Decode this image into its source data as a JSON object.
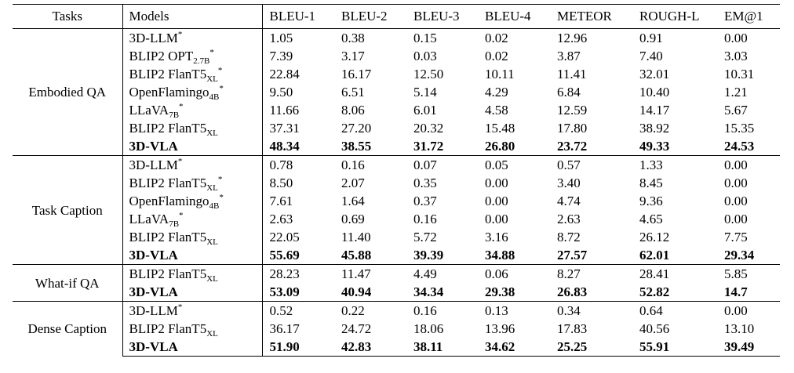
{
  "columns": [
    "Tasks",
    "Models",
    "BLEU-1",
    "BLEU-2",
    "BLEU-3",
    "BLEU-4",
    "METEOR",
    "ROUGH-L",
    "EM@1"
  ],
  "groups": [
    {
      "task": "Embodied QA",
      "rows": [
        {
          "model": "3D-LLM",
          "sub": "",
          "star": "*",
          "bold": false,
          "values": [
            "1.05",
            "0.38",
            "0.15",
            "0.02",
            "12.96",
            "0.91",
            "0.00"
          ]
        },
        {
          "model": "BLIP2 OPT",
          "sub": "2.7B",
          "star": "*",
          "bold": false,
          "values": [
            "7.39",
            "3.17",
            "0.03",
            "0.02",
            "3.87",
            "7.40",
            "3.03"
          ]
        },
        {
          "model": "BLIP2 FlanT5",
          "sub": "XL",
          "star": "*",
          "bold": false,
          "values": [
            "22.84",
            "16.17",
            "12.50",
            "10.11",
            "11.41",
            "32.01",
            "10.31"
          ]
        },
        {
          "model": "OpenFlamingo",
          "sub": "4B",
          "star": "*",
          "bold": false,
          "values": [
            "9.50",
            "6.51",
            "5.14",
            "4.29",
            "6.84",
            "10.40",
            "1.21"
          ]
        },
        {
          "model": "LLaVA",
          "sub": "7B",
          "star": "*",
          "bold": false,
          "values": [
            "11.66",
            "8.06",
            "6.01",
            "4.58",
            "12.59",
            "14.17",
            "5.67"
          ]
        },
        {
          "model": "BLIP2 FlanT5",
          "sub": "XL",
          "star": "",
          "bold": false,
          "values": [
            "37.31",
            "27.20",
            "20.32",
            "15.48",
            "17.80",
            "38.92",
            "15.35"
          ]
        },
        {
          "model": "3D-VLA",
          "sub": "",
          "star": "",
          "bold": true,
          "values": [
            "48.34",
            "38.55",
            "31.72",
            "26.80",
            "23.72",
            "49.33",
            "24.53"
          ]
        }
      ]
    },
    {
      "task": "Task Caption",
      "rows": [
        {
          "model": "3D-LLM",
          "sub": "",
          "star": "*",
          "bold": false,
          "values": [
            "0.78",
            "0.16",
            "0.07",
            "0.05",
            "0.57",
            "1.33",
            "0.00"
          ]
        },
        {
          "model": "BLIP2 FlanT5",
          "sub": "XL",
          "star": "*",
          "bold": false,
          "values": [
            "8.50",
            "2.07",
            "0.35",
            "0.00",
            "3.40",
            "8.45",
            "0.00"
          ]
        },
        {
          "model": "OpenFlamingo",
          "sub": "4B",
          "star": "*",
          "bold": false,
          "values": [
            "7.61",
            "1.64",
            "0.37",
            "0.00",
            "4.74",
            "9.36",
            "0.00"
          ]
        },
        {
          "model": "LLaVA",
          "sub": "7B",
          "star": "*",
          "bold": false,
          "values": [
            "2.63",
            "0.69",
            "0.16",
            "0.00",
            "2.63",
            "4.65",
            "0.00"
          ]
        },
        {
          "model": "BLIP2 FlanT5",
          "sub": "XL",
          "star": "",
          "bold": false,
          "values": [
            "22.05",
            "11.40",
            "5.72",
            "3.16",
            "8.72",
            "26.12",
            "7.75"
          ]
        },
        {
          "model": "3D-VLA",
          "sub": "",
          "star": "",
          "bold": true,
          "values": [
            "55.69",
            "45.88",
            "39.39",
            "34.88",
            "27.57",
            "62.01",
            "29.34"
          ]
        }
      ]
    },
    {
      "task": "What-if QA",
      "rows": [
        {
          "model": "BLIP2 FlanT5",
          "sub": "XL",
          "star": "",
          "bold": false,
          "values": [
            "28.23",
            "11.47",
            "4.49",
            "0.06",
            "8.27",
            "28.41",
            "5.85"
          ]
        },
        {
          "model": "3D-VLA",
          "sub": "",
          "star": "",
          "bold": true,
          "values": [
            "53.09",
            "40.94",
            "34.34",
            "29.38",
            "26.83",
            "52.82",
            "14.7"
          ]
        }
      ]
    },
    {
      "task": "Dense Caption",
      "rows": [
        {
          "model": "3D-LLM",
          "sub": "",
          "star": "*",
          "bold": false,
          "values": [
            "0.52",
            "0.22",
            "0.16",
            "0.13",
            "0.34",
            "0.64",
            "0.00"
          ]
        },
        {
          "model": "BLIP2 FlanT5",
          "sub": "XL",
          "star": "",
          "bold": false,
          "values": [
            "36.17",
            "24.72",
            "18.06",
            "13.96",
            "17.83",
            "40.56",
            "13.10"
          ]
        },
        {
          "model": "3D-VLA",
          "sub": "",
          "star": "",
          "bold": true,
          "values": [
            "51.90",
            "42.83",
            "38.11",
            "34.62",
            "25.25",
            "55.91",
            "39.49"
          ]
        }
      ]
    }
  ]
}
